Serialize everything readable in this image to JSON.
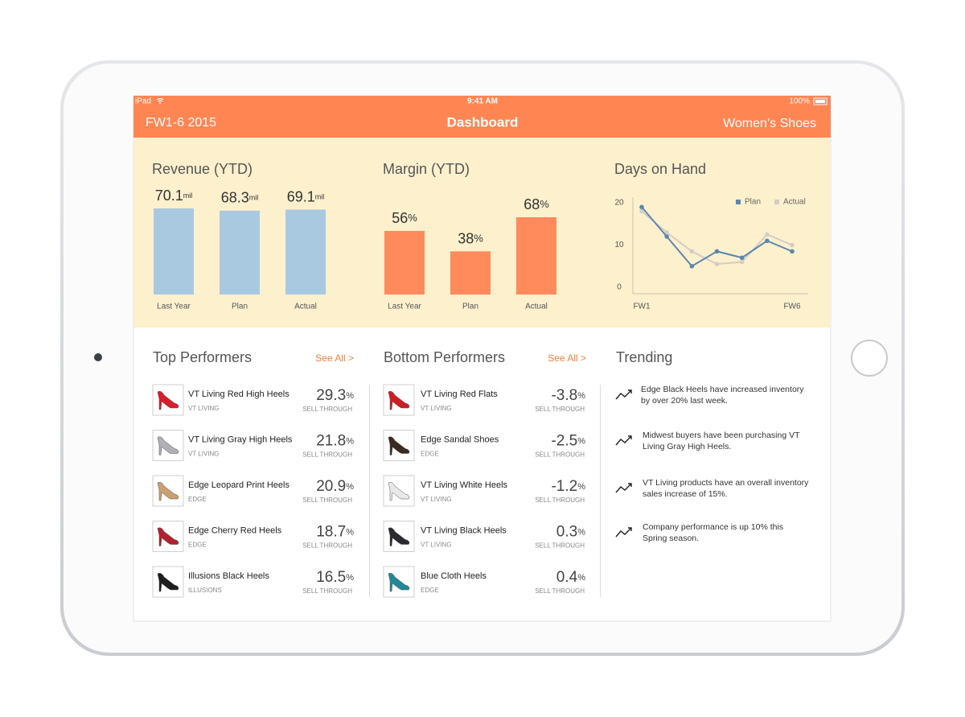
{
  "status_bar": {
    "device": "iPad",
    "time": "9:41 AM",
    "battery": "100%"
  },
  "nav": {
    "left": "FW1-6 2015",
    "title": "Dashboard",
    "right": "Women’s Shoes"
  },
  "chart_data": [
    {
      "type": "bar",
      "title": "Revenue (YTD)",
      "categories": [
        "Last Year",
        "Plan",
        "Actual"
      ],
      "values": [
        70.1,
        68.3,
        69.1
      ],
      "unit": "mil",
      "color": "#a9c9e1"
    },
    {
      "type": "bar",
      "title": "Margin (YTD)",
      "categories": [
        "Last Year",
        "Plan",
        "Actual"
      ],
      "values": [
        56,
        38,
        68
      ],
      "unit": "%",
      "color": "#ff8a5c"
    },
    {
      "type": "line",
      "title": "Days on Hand",
      "categories": [
        "FW1",
        null,
        null,
        null,
        null,
        null,
        "FW6"
      ],
      "series": [
        {
          "name": "Plan",
          "color": "#5b87b0",
          "values": [
            19,
            12,
            5,
            8.5,
            7,
            11,
            8.5
          ]
        },
        {
          "name": "Actual",
          "color": "#d3cdc5",
          "values": [
            18,
            13,
            8.5,
            5.5,
            6,
            12.5,
            10
          ]
        }
      ],
      "ylim": [
        0,
        20
      ],
      "yticks": [
        0,
        10,
        20
      ],
      "legend": "top-right"
    }
  ],
  "top_performers": {
    "title": "Top Performers",
    "link": "See All >",
    "metric": "SELL THROUGH",
    "unit": "%",
    "items": [
      {
        "name": "VT Living Red High Heels",
        "brand": "VT LIVING",
        "value": 29.3
      },
      {
        "name": "VT Living Gray High Heels",
        "brand": "VT LIVING",
        "value": 21.8
      },
      {
        "name": "Edge Leopard Print Heels",
        "brand": "EDGE",
        "value": 20.9
      },
      {
        "name": "Edge Cherry Red Heels",
        "brand": "EDGE",
        "value": 18.7
      },
      {
        "name": "Illusions Black Heels",
        "brand": "ILLUSIONS",
        "value": 16.5
      }
    ]
  },
  "bottom_performers": {
    "title": "Bottom Performers",
    "link": "See All >",
    "metric": "SELL THROUGH",
    "unit": "%",
    "items": [
      {
        "name": "VT Living Red Flats",
        "brand": "VT LIVING",
        "value": -3.8
      },
      {
        "name": "Edge Sandal Shoes",
        "brand": "EDGE",
        "value": -2.5
      },
      {
        "name": "VT Living White Heels",
        "brand": "VT LIVING",
        "value": -1.2
      },
      {
        "name": "VT Living Black Heels",
        "brand": "VT LIVING",
        "value": 0.3
      },
      {
        "name": "Blue Cloth Heels",
        "brand": "EDGE",
        "value": 0.4
      }
    ]
  },
  "trending": {
    "title": "Trending",
    "items": [
      [
        "Edge Black Heels have increased inventory",
        "by over 20% last week."
      ],
      [
        "Midwest buyers have been purchasing VT",
        "Living Gray High Heels."
      ],
      [
        "VT Living products have an overall inventory",
        "sales increase of 15%."
      ],
      [
        "Company performance is up 10% this",
        "Spring season."
      ]
    ]
  }
}
